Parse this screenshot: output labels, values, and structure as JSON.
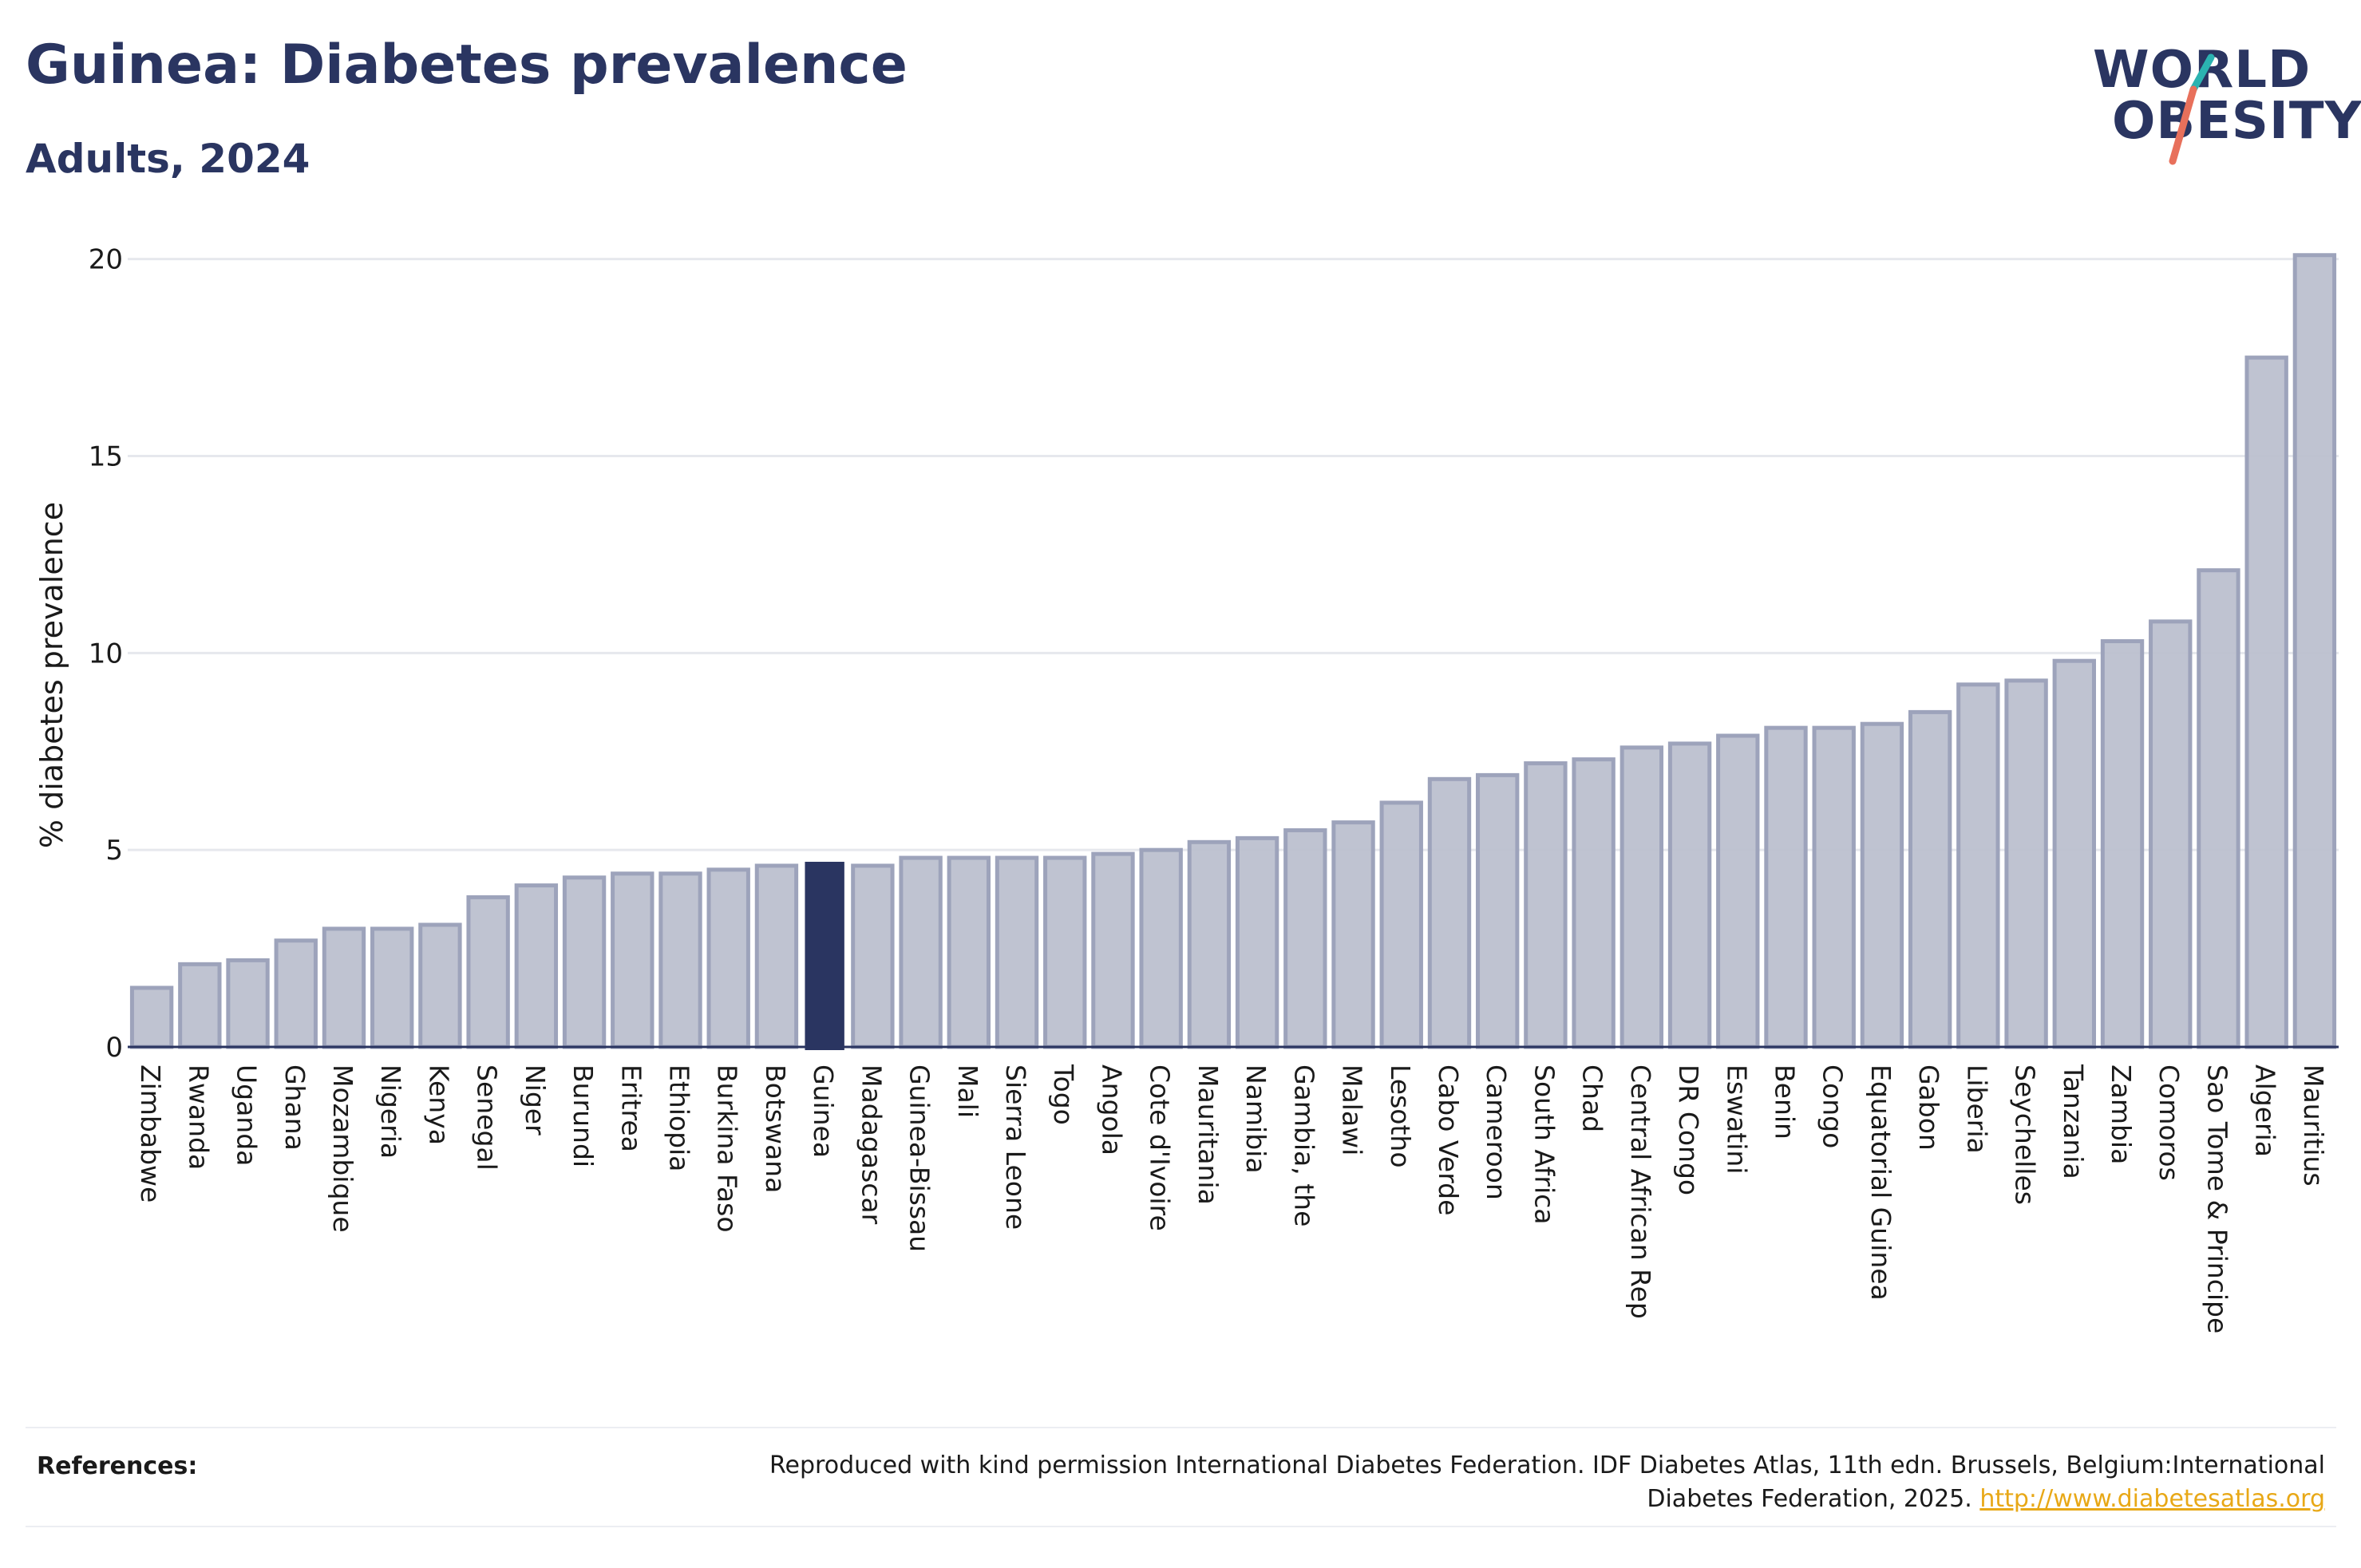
{
  "header": {
    "title": "Guinea: Diabetes prevalence",
    "subtitle": "Adults, 2024"
  },
  "logo": {
    "line1": "WORLD",
    "line2": "OBESITY",
    "slash_colors": [
      "#2bb3b1",
      "#e8705b"
    ]
  },
  "colors": {
    "highlight": "#2a3561",
    "bar_fill": "#bcc0cf",
    "bar_stroke": "#9da3bb",
    "grid": "#e6e8ed",
    "axis": "#2a3561"
  },
  "chart_data": {
    "type": "bar",
    "title": "Guinea: Diabetes prevalence",
    "subtitle": "Adults, 2024",
    "xlabel": "",
    "ylabel": "% diabetes prevalence",
    "ylim": [
      0,
      20.5
    ],
    "yticks": [
      0,
      5,
      10,
      15,
      20
    ],
    "grid": true,
    "highlight": "Guinea",
    "categories": [
      "Zimbabwe",
      "Rwanda",
      "Uganda",
      "Ghana",
      "Mozambique",
      "Nigeria",
      "Kenya",
      "Senegal",
      "Niger",
      "Burundi",
      "Eritrea",
      "Ethiopia",
      "Burkina Faso",
      "Botswana",
      "Guinea",
      "Madagascar",
      "Guinea-Bissau",
      "Mali",
      "Sierra Leone",
      "Togo",
      "Angola",
      "Cote d'Ivoire",
      "Mauritania",
      "Namibia",
      "Gambia, the",
      "Malawi",
      "Lesotho",
      "Cabo Verde",
      "Cameroon",
      "South Africa",
      "Chad",
      "Central African Rep",
      "DR Congo",
      "Eswatini",
      "Benin",
      "Congo",
      "Equatorial Guinea",
      "Gabon",
      "Liberia",
      "Seychelles",
      "Tanzania",
      "Zambia",
      "Comoros",
      "Sao Tome & Principe",
      "Algeria",
      "Mauritius"
    ],
    "values": [
      1.5,
      2.1,
      2.2,
      2.7,
      3.0,
      3.0,
      3.1,
      3.8,
      4.1,
      4.3,
      4.4,
      4.4,
      4.5,
      4.6,
      4.7,
      4.6,
      4.8,
      4.8,
      4.8,
      4.8,
      4.9,
      5.0,
      5.2,
      5.3,
      5.5,
      5.7,
      6.2,
      6.8,
      6.9,
      7.2,
      7.3,
      7.6,
      7.7,
      7.9,
      8.1,
      8.1,
      8.2,
      8.5,
      9.2,
      9.3,
      9.8,
      10.3,
      10.8,
      12.1,
      17.5,
      20.1
    ]
  },
  "references": {
    "label": "References:",
    "text": "Reproduced with kind permission International Diabetes Federation. IDF Diabetes Atlas, 11th edn. Brussels, Belgium:International Diabetes Federation, 2025.",
    "link": "http://www.diabetesatlas.org"
  }
}
